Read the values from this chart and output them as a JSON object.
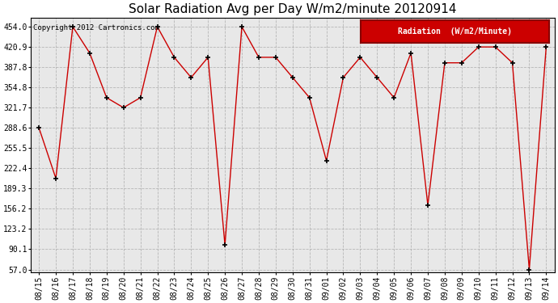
{
  "title": "Solar Radiation Avg per Day W/m2/minute 20120914",
  "copyright": "Copyright 2012 Cartronics.com",
  "legend_label": "Radiation  (W/m2/Minute)",
  "dates": [
    "08/15",
    "08/16",
    "08/17",
    "08/18",
    "08/19",
    "08/20",
    "08/21",
    "08/22",
    "08/23",
    "08/24",
    "08/25",
    "08/26",
    "08/27",
    "08/28",
    "08/29",
    "08/30",
    "08/31",
    "09/01",
    "09/02",
    "09/03",
    "09/04",
    "09/05",
    "09/06",
    "09/07",
    "09/08",
    "09/09",
    "09/10",
    "09/11",
    "09/12",
    "09/13",
    "09/14"
  ],
  "values": [
    288.6,
    206.0,
    454.0,
    411.0,
    338.0,
    321.7,
    338.0,
    454.0,
    404.0,
    371.0,
    404.0,
    97.0,
    454.0,
    404.0,
    404.0,
    371.0,
    338.0,
    235.0,
    371.0,
    404.0,
    371.0,
    338.0,
    411.0,
    162.0,
    395.0,
    395.0,
    420.9,
    420.9,
    395.0,
    57.0,
    420.9
  ],
  "line_color": "#cc0000",
  "marker_color": "black",
  "bg_color": "#e8e8e8",
  "grid_color": "#aaaaaa",
  "ymin": 57.0,
  "ymax": 454.0,
  "yticks": [
    57.0,
    90.1,
    123.2,
    156.2,
    189.3,
    222.4,
    255.5,
    288.6,
    321.7,
    354.8,
    387.8,
    420.9,
    454.0
  ],
  "title_fontsize": 11,
  "legend_bg": "#cc0000",
  "legend_text_color": "white",
  "fig_width": 6.9,
  "fig_height": 3.75,
  "dpi": 100
}
